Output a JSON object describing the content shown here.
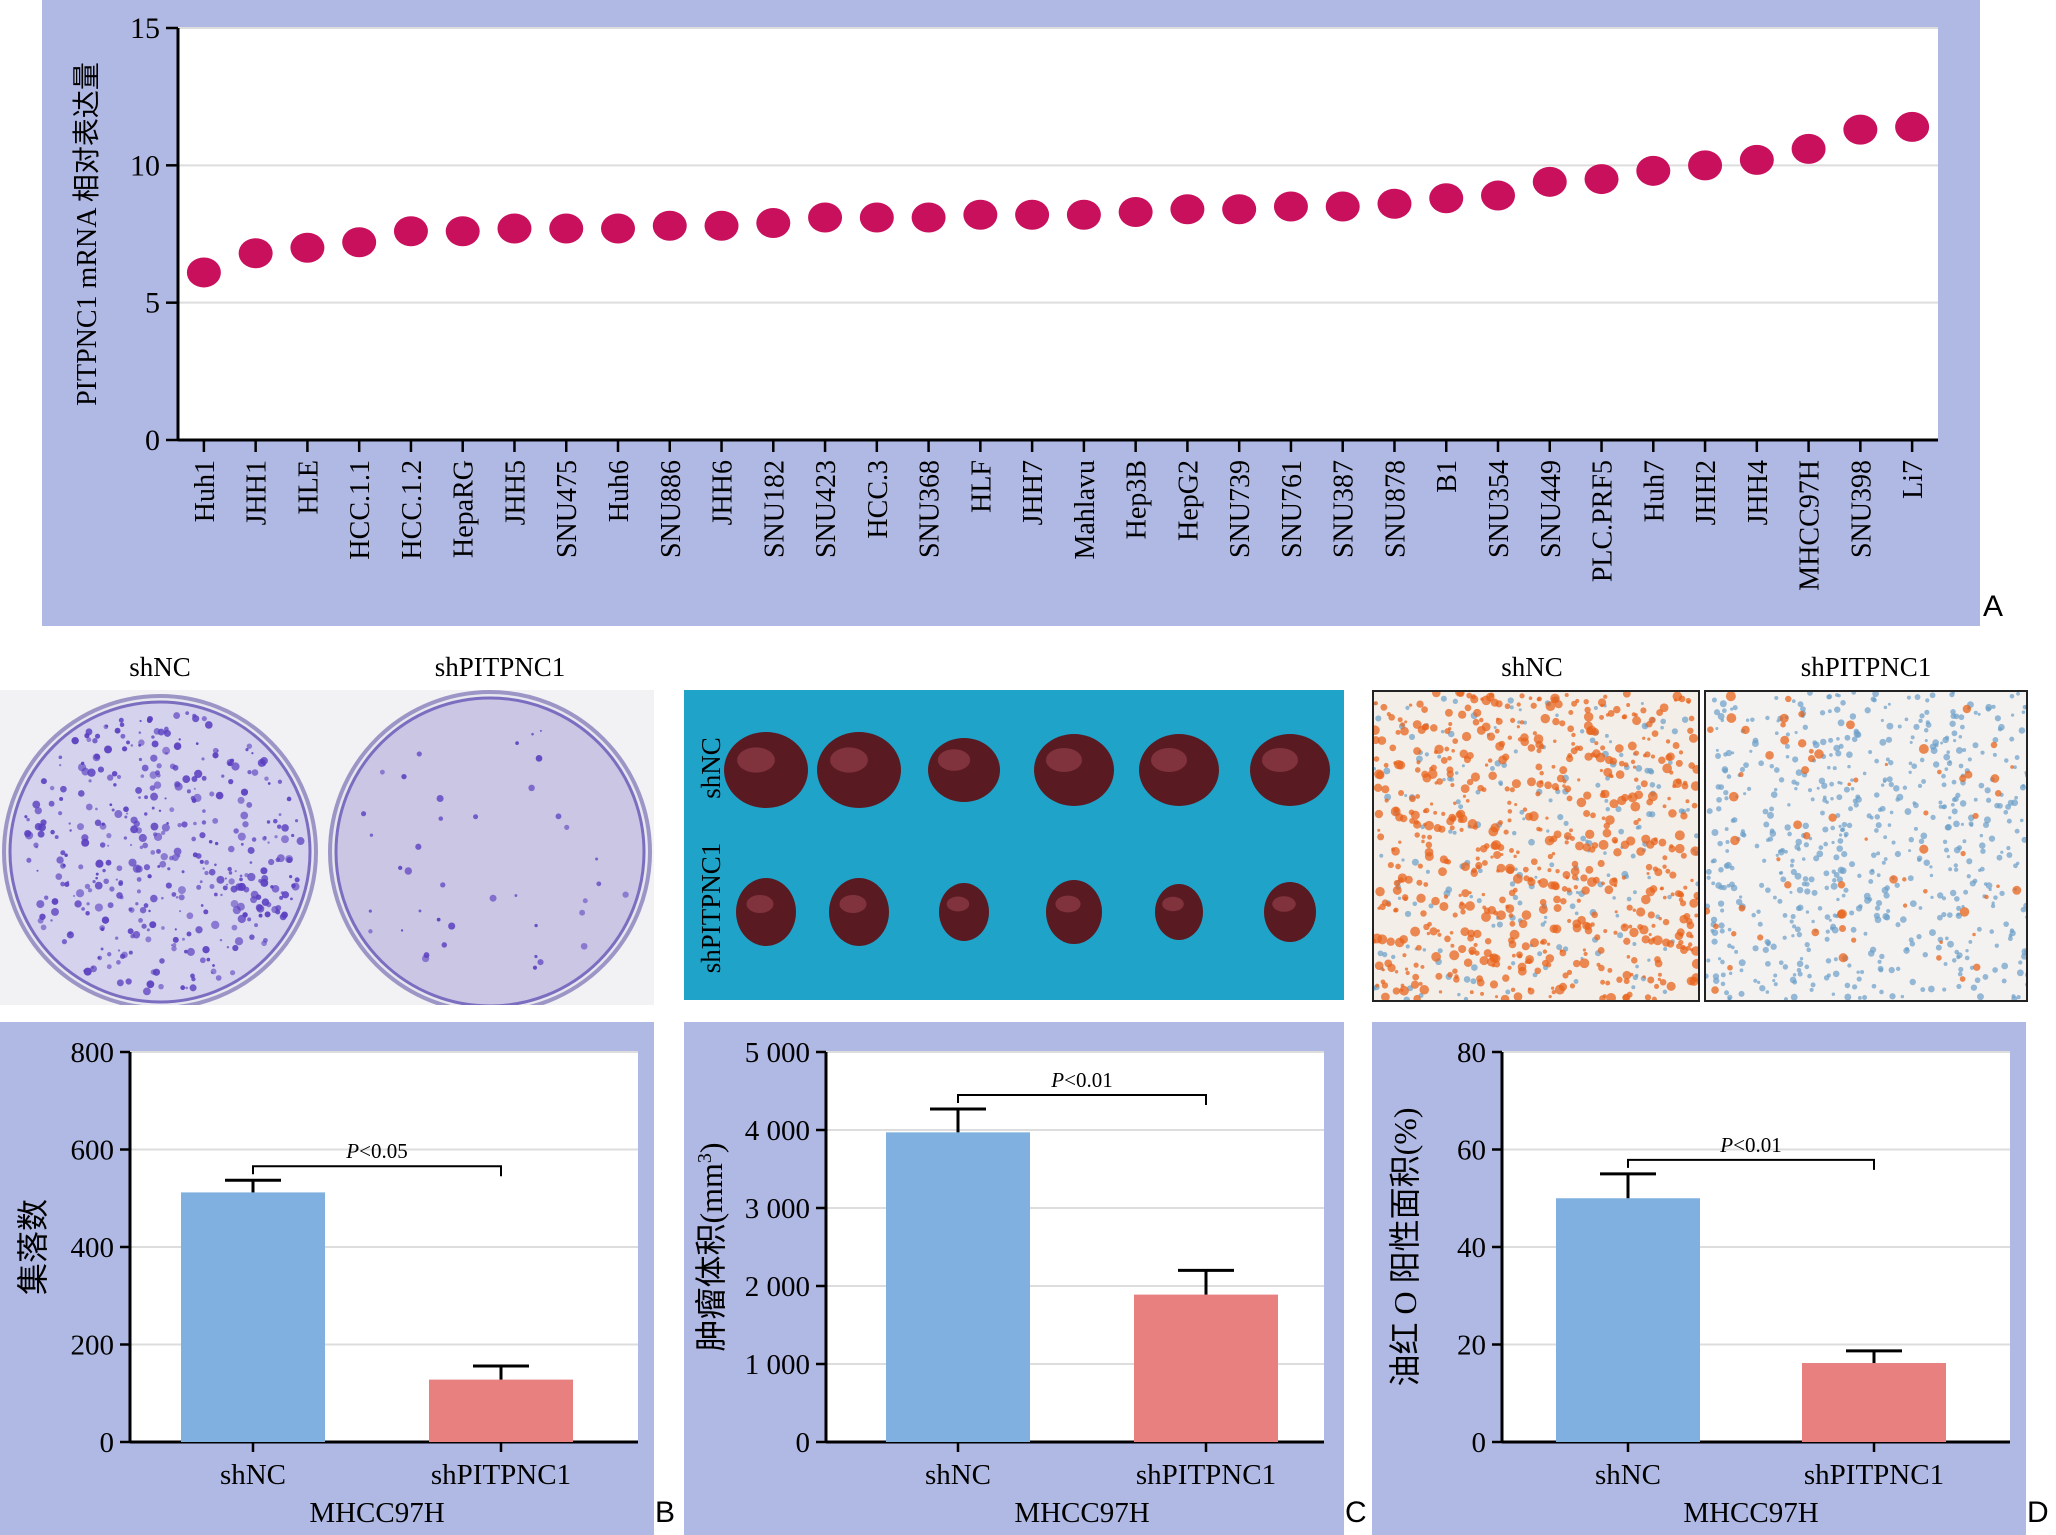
{
  "colors": {
    "panel_bg": "#b0b9e3",
    "dot": "#c8105c",
    "bar_shNC": "#7fb0e0",
    "bar_shPITPNC1": "#e88080",
    "grid": "#dddddd",
    "dish_stain": "#5a3fc0",
    "tissue_bg": "#1fa3c8",
    "oil_red": "#e8641e",
    "nuclei_blue": "#6a9ec8"
  },
  "panel_letters": {
    "a": "A",
    "b": "B",
    "c": "C",
    "d": "D"
  },
  "images": {
    "colony_titles": [
      "shNC",
      "shPITPNC1"
    ],
    "tumor_row_labels": [
      "shNC",
      "shPITPNC1"
    ],
    "stain_titles": [
      "shNC",
      "shPITPNC1"
    ]
  },
  "chart_data": [
    {
      "type": "scatter",
      "panel": "A",
      "ylabel": "PITPNC1 mRNA 相对表达量",
      "xlabel": "",
      "ylim": [
        0,
        15
      ],
      "yticks": [
        "0",
        "5",
        "10",
        "15"
      ],
      "ytick_values": [
        0,
        5,
        10,
        15
      ],
      "grid": true,
      "categories": [
        "Huh1",
        "JHH1",
        "HLE",
        "HCC.1.1",
        "HCC.1.2",
        "HepaRG",
        "JHH5",
        "SNU475",
        "Huh6",
        "SNU886",
        "JHH6",
        "SNU182",
        "SNU423",
        "HCC.3",
        "SNU368",
        "HLF",
        "JHH7",
        "Mahlavu",
        "Hep3B",
        "HepG2",
        "SNU739",
        "SNU761",
        "SNU387",
        "SNU878",
        "B1",
        "SNU354",
        "SNU449",
        "PLC.PRF5",
        "Huh7",
        "JHH2",
        "JHH4",
        "MHCC97H",
        "SNU398",
        "Li7"
      ],
      "values": [
        6.1,
        6.8,
        7.0,
        7.2,
        7.6,
        7.6,
        7.7,
        7.7,
        7.7,
        7.8,
        7.8,
        7.9,
        8.1,
        8.1,
        8.1,
        8.2,
        8.2,
        8.2,
        8.3,
        8.4,
        8.4,
        8.5,
        8.5,
        8.6,
        8.8,
        8.9,
        9.4,
        9.5,
        9.8,
        10.0,
        10.2,
        10.6,
        11.3,
        11.4
      ]
    },
    {
      "type": "bar",
      "panel": "B",
      "ylabel": "集落数",
      "xlabel": "MHCC97H",
      "ylim": [
        0,
        800
      ],
      "yticks": [
        "0",
        "200",
        "400",
        "600",
        "800"
      ],
      "ytick_values": [
        0,
        200,
        400,
        600,
        800
      ],
      "categories": [
        "shNC",
        "shPITPNC1"
      ],
      "values": [
        512,
        128
      ],
      "errors": [
        25,
        28
      ],
      "significance": {
        "p_italic": "P",
        "p_rest": "<0.05"
      }
    },
    {
      "type": "bar",
      "panel": "C",
      "ylabel_main": "肿瘤体积(mm",
      "ylabel_sup": "3",
      "ylabel_end": ")",
      "xlabel": "MHCC97H",
      "ylim": [
        0,
        5000
      ],
      "yticks": [
        "0",
        "1 000",
        "2 000",
        "3 000",
        "4 000",
        "5 000"
      ],
      "ytick_values": [
        0,
        1000,
        2000,
        3000,
        4000,
        5000
      ],
      "categories": [
        "shNC",
        "shPITPNC1"
      ],
      "values": [
        3970,
        1890
      ],
      "errors": [
        300,
        310
      ],
      "significance": {
        "p_italic": "P",
        "p_rest": "<0.01"
      }
    },
    {
      "type": "bar",
      "panel": "D",
      "ylabel": "油红 O 阳性面积(%)",
      "xlabel": "MHCC97H",
      "ylim": [
        0,
        80
      ],
      "yticks": [
        "0",
        "20",
        "40",
        "60",
        "80"
      ],
      "ytick_values": [
        0,
        20,
        40,
        60,
        80
      ],
      "categories": [
        "shNC",
        "shPITPNC1"
      ],
      "values": [
        50,
        16.2
      ],
      "errors": [
        5,
        2.5
      ],
      "significance": {
        "p_italic": "P",
        "p_rest": "<0.01"
      }
    }
  ]
}
